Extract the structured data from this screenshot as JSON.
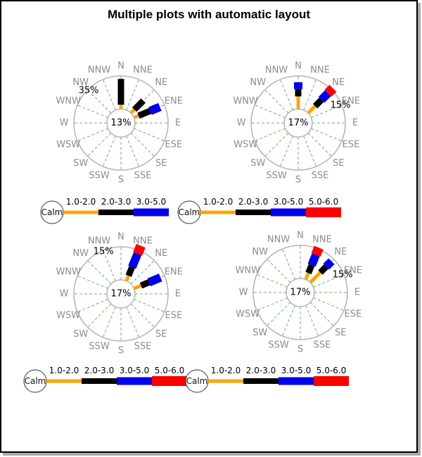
{
  "title": "Multiple plots with automatic layout",
  "compass_labels": [
    "N",
    "NNE",
    "NE",
    "ENE",
    "E",
    "ESE",
    "SE",
    "SSE",
    "S",
    "SSW",
    "SW",
    "WSW",
    "W",
    "WNW",
    "NW",
    "NNW"
  ],
  "legend_calm_label": "Calm",
  "speed_bins": [
    {
      "label": "1.0-2.0",
      "color": "#FFA500"
    },
    {
      "label": "2.0-3.0",
      "color": "#000000"
    },
    {
      "label": "3.0-5.0",
      "color": "#0000EE"
    },
    {
      "label": "5.0-6.0",
      "color": "#FF0000"
    }
  ],
  "style": {
    "grid_color": "#70ad70",
    "ring_color": "#b3b3b3",
    "direction_label_color": "#8c8c8c",
    "text_color": "#000000"
  },
  "chart_data": [
    {
      "type": "bar",
      "polar": true,
      "position": "top-left",
      "center_label": "13%",
      "outer_ring_label": "35%",
      "outer_ring_label_direction": "NW",
      "legend_bins": [
        "1.0-2.0",
        "2.0-3.0",
        "3.0-5.0"
      ],
      "bars": [
        {
          "direction": "N",
          "segments": [
            [
              "1.0-2.0",
              0,
              0.13
            ],
            [
              "2.0-3.0",
              0.13,
              0.91
            ]
          ]
        },
        {
          "direction": "NE",
          "segments": [
            [
              "1.0-2.0",
              0,
              0.15
            ],
            [
              "2.0-3.0",
              0.15,
              0.53
            ]
          ]
        },
        {
          "direction": "ENE",
          "segments": [
            [
              "1.0-2.0",
              0,
              0.15
            ],
            [
              "2.0-3.0",
              0.15,
              0.53
            ],
            [
              "3.0-5.0",
              0.53,
              0.85
            ]
          ]
        }
      ]
    },
    {
      "type": "bar",
      "polar": true,
      "position": "top-right",
      "center_label": "17%",
      "outer_ring_label": "15%",
      "outer_ring_label_direction": "ENE",
      "legend_bins": [
        "1.0-2.0",
        "2.0-3.0",
        "3.0-5.0",
        "5.0-6.0"
      ],
      "bars": [
        {
          "direction": "N",
          "segments": [
            [
              "1.0-2.0",
              0,
              0.38
            ],
            [
              "2.0-3.0",
              0.38,
              0.6
            ],
            [
              "3.0-5.0",
              0.6,
              0.81
            ]
          ]
        },
        {
          "direction": "NE",
          "segments": [
            [
              "1.0-2.0",
              0,
              0.3
            ],
            [
              "2.0-3.0",
              0.3,
              0.57
            ],
            [
              "3.0-5.0",
              0.57,
              0.85
            ],
            [
              "5.0-6.0",
              0.85,
              1.06
            ]
          ]
        }
      ]
    },
    {
      "type": "bar",
      "polar": true,
      "position": "bottom-left",
      "center_label": "17%",
      "outer_ring_label": "15%",
      "outer_ring_label_direction": "NNW",
      "legend_bins": [
        "1.0-2.0",
        "2.0-3.0",
        "3.0-5.0",
        "5.0-6.0"
      ],
      "bars": [
        {
          "direction": "NNE",
          "segments": [
            [
              "1.0-2.0",
              0,
              0.17
            ],
            [
              "2.0-3.0",
              0.17,
              0.45
            ],
            [
              "3.0-5.0",
              0.45,
              0.89
            ],
            [
              "5.0-6.0",
              0.89,
              1.15
            ]
          ]
        },
        {
          "direction": "ENE",
          "segments": [
            [
              "1.0-2.0",
              0,
              0.23
            ],
            [
              "2.0-3.0",
              0.23,
              0.49
            ],
            [
              "3.0-5.0",
              0.49,
              0.87
            ]
          ]
        }
      ]
    },
    {
      "type": "bar",
      "polar": true,
      "position": "bottom-right",
      "center_label": "17%",
      "outer_ring_label": "15%",
      "outer_ring_label_direction": "ENE",
      "legend_bins": [
        "1.0-2.0",
        "2.0-3.0",
        "3.0-5.0",
        "5.0-6.0"
      ],
      "bars": [
        {
          "direction": "NNE",
          "segments": [
            [
              "1.0-2.0",
              0,
              0.21
            ],
            [
              "2.0-3.0",
              0.21,
              0.47
            ],
            [
              "3.0-5.0",
              0.47,
              0.81
            ],
            [
              "5.0-6.0",
              0.81,
              1.04
            ]
          ]
        },
        {
          "direction": "NE",
          "segments": [
            [
              "1.0-2.0",
              0,
              0.43
            ],
            [
              "2.0-3.0",
              0.43,
              0.68
            ],
            [
              "3.0-5.0",
              0.68,
              0.91
            ]
          ]
        }
      ]
    }
  ]
}
